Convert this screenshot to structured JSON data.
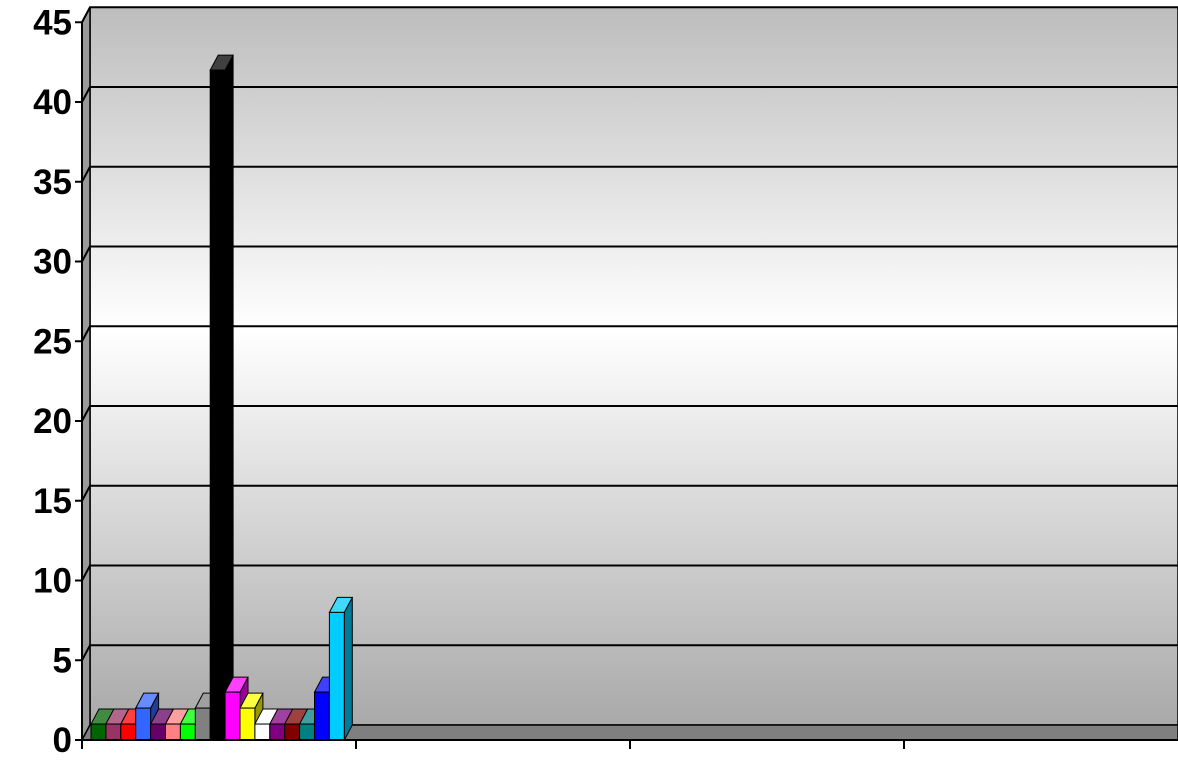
{
  "chart_data": {
    "type": "bar",
    "style": "3d-column",
    "y_axis": {
      "ylim": [
        0,
        45
      ],
      "ticks": [
        "0",
        "5",
        "10",
        "15",
        "20",
        "25",
        "30",
        "35",
        "40",
        "45"
      ]
    },
    "grid": true,
    "legend": "none",
    "x_tick_labels": [],
    "x_categories_count": 4,
    "colors": {
      "wall_top": "#bdbdbd",
      "wall_mid": "#ffffff",
      "floor": "#7f7f7f",
      "gridline": "#000000"
    },
    "series": [
      {
        "values": [
          1
        ],
        "color": "#006400"
      },
      {
        "values": [
          1
        ],
        "color": "#993366"
      },
      {
        "values": [
          1
        ],
        "color": "#ff0000"
      },
      {
        "values": [
          2
        ],
        "color": "#3366ff"
      },
      {
        "values": [
          1
        ],
        "color": "#660066"
      },
      {
        "values": [
          1
        ],
        "color": "#ff8080"
      },
      {
        "values": [
          1
        ],
        "color": "#00ff00"
      },
      {
        "values": [
          2
        ],
        "color": "#808080"
      },
      {
        "values": [
          42
        ],
        "color": "#000000"
      },
      {
        "values": [
          3
        ],
        "color": "#ff00ff"
      },
      {
        "values": [
          2
        ],
        "color": "#ffff00"
      },
      {
        "values": [
          1
        ],
        "color": "#ffffff"
      },
      {
        "values": [
          1
        ],
        "color": "#800080"
      },
      {
        "values": [
          1
        ],
        "color": "#800000"
      },
      {
        "values": [
          1
        ],
        "color": "#008080"
      },
      {
        "values": [
          3
        ],
        "color": "#0000ff"
      },
      {
        "values": [
          8
        ],
        "color": "#00ccff"
      }
    ]
  }
}
